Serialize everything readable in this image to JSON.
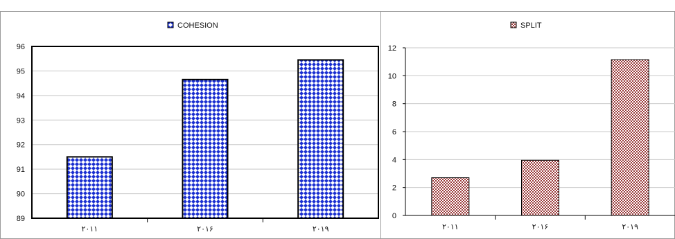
{
  "chart_data": [
    {
      "type": "bar",
      "title": "COHESION",
      "series": [
        {
          "name": "COHESION",
          "values": [
            91.5,
            94.65,
            95.45
          ]
        }
      ],
      "categories": [
        "۲۰۱۱",
        "۲۰۱۶",
        "۲۰۱۹"
      ],
      "ylim": [
        89,
        96
      ],
      "yticks": [
        "89",
        "90",
        "91",
        "92",
        "93",
        "94",
        "95",
        "96"
      ],
      "grid": true,
      "legend": "top-center",
      "fill_color": "#1a2fd1",
      "pattern": "diamonds"
    },
    {
      "type": "bar",
      "title": "SPLIT",
      "series": [
        {
          "name": "SPLIT",
          "values": [
            2.7,
            3.95,
            11.15
          ]
        }
      ],
      "categories": [
        "۲۰۱۱",
        "۲۰۱۶",
        "۲۰۱۹"
      ],
      "ylim": [
        0,
        12
      ],
      "yticks": [
        "0",
        "2",
        "4",
        "6",
        "8",
        "10",
        "12"
      ],
      "grid": true,
      "legend": "top-center",
      "fill_color": "#9b3b3b",
      "pattern": "checker"
    }
  ]
}
